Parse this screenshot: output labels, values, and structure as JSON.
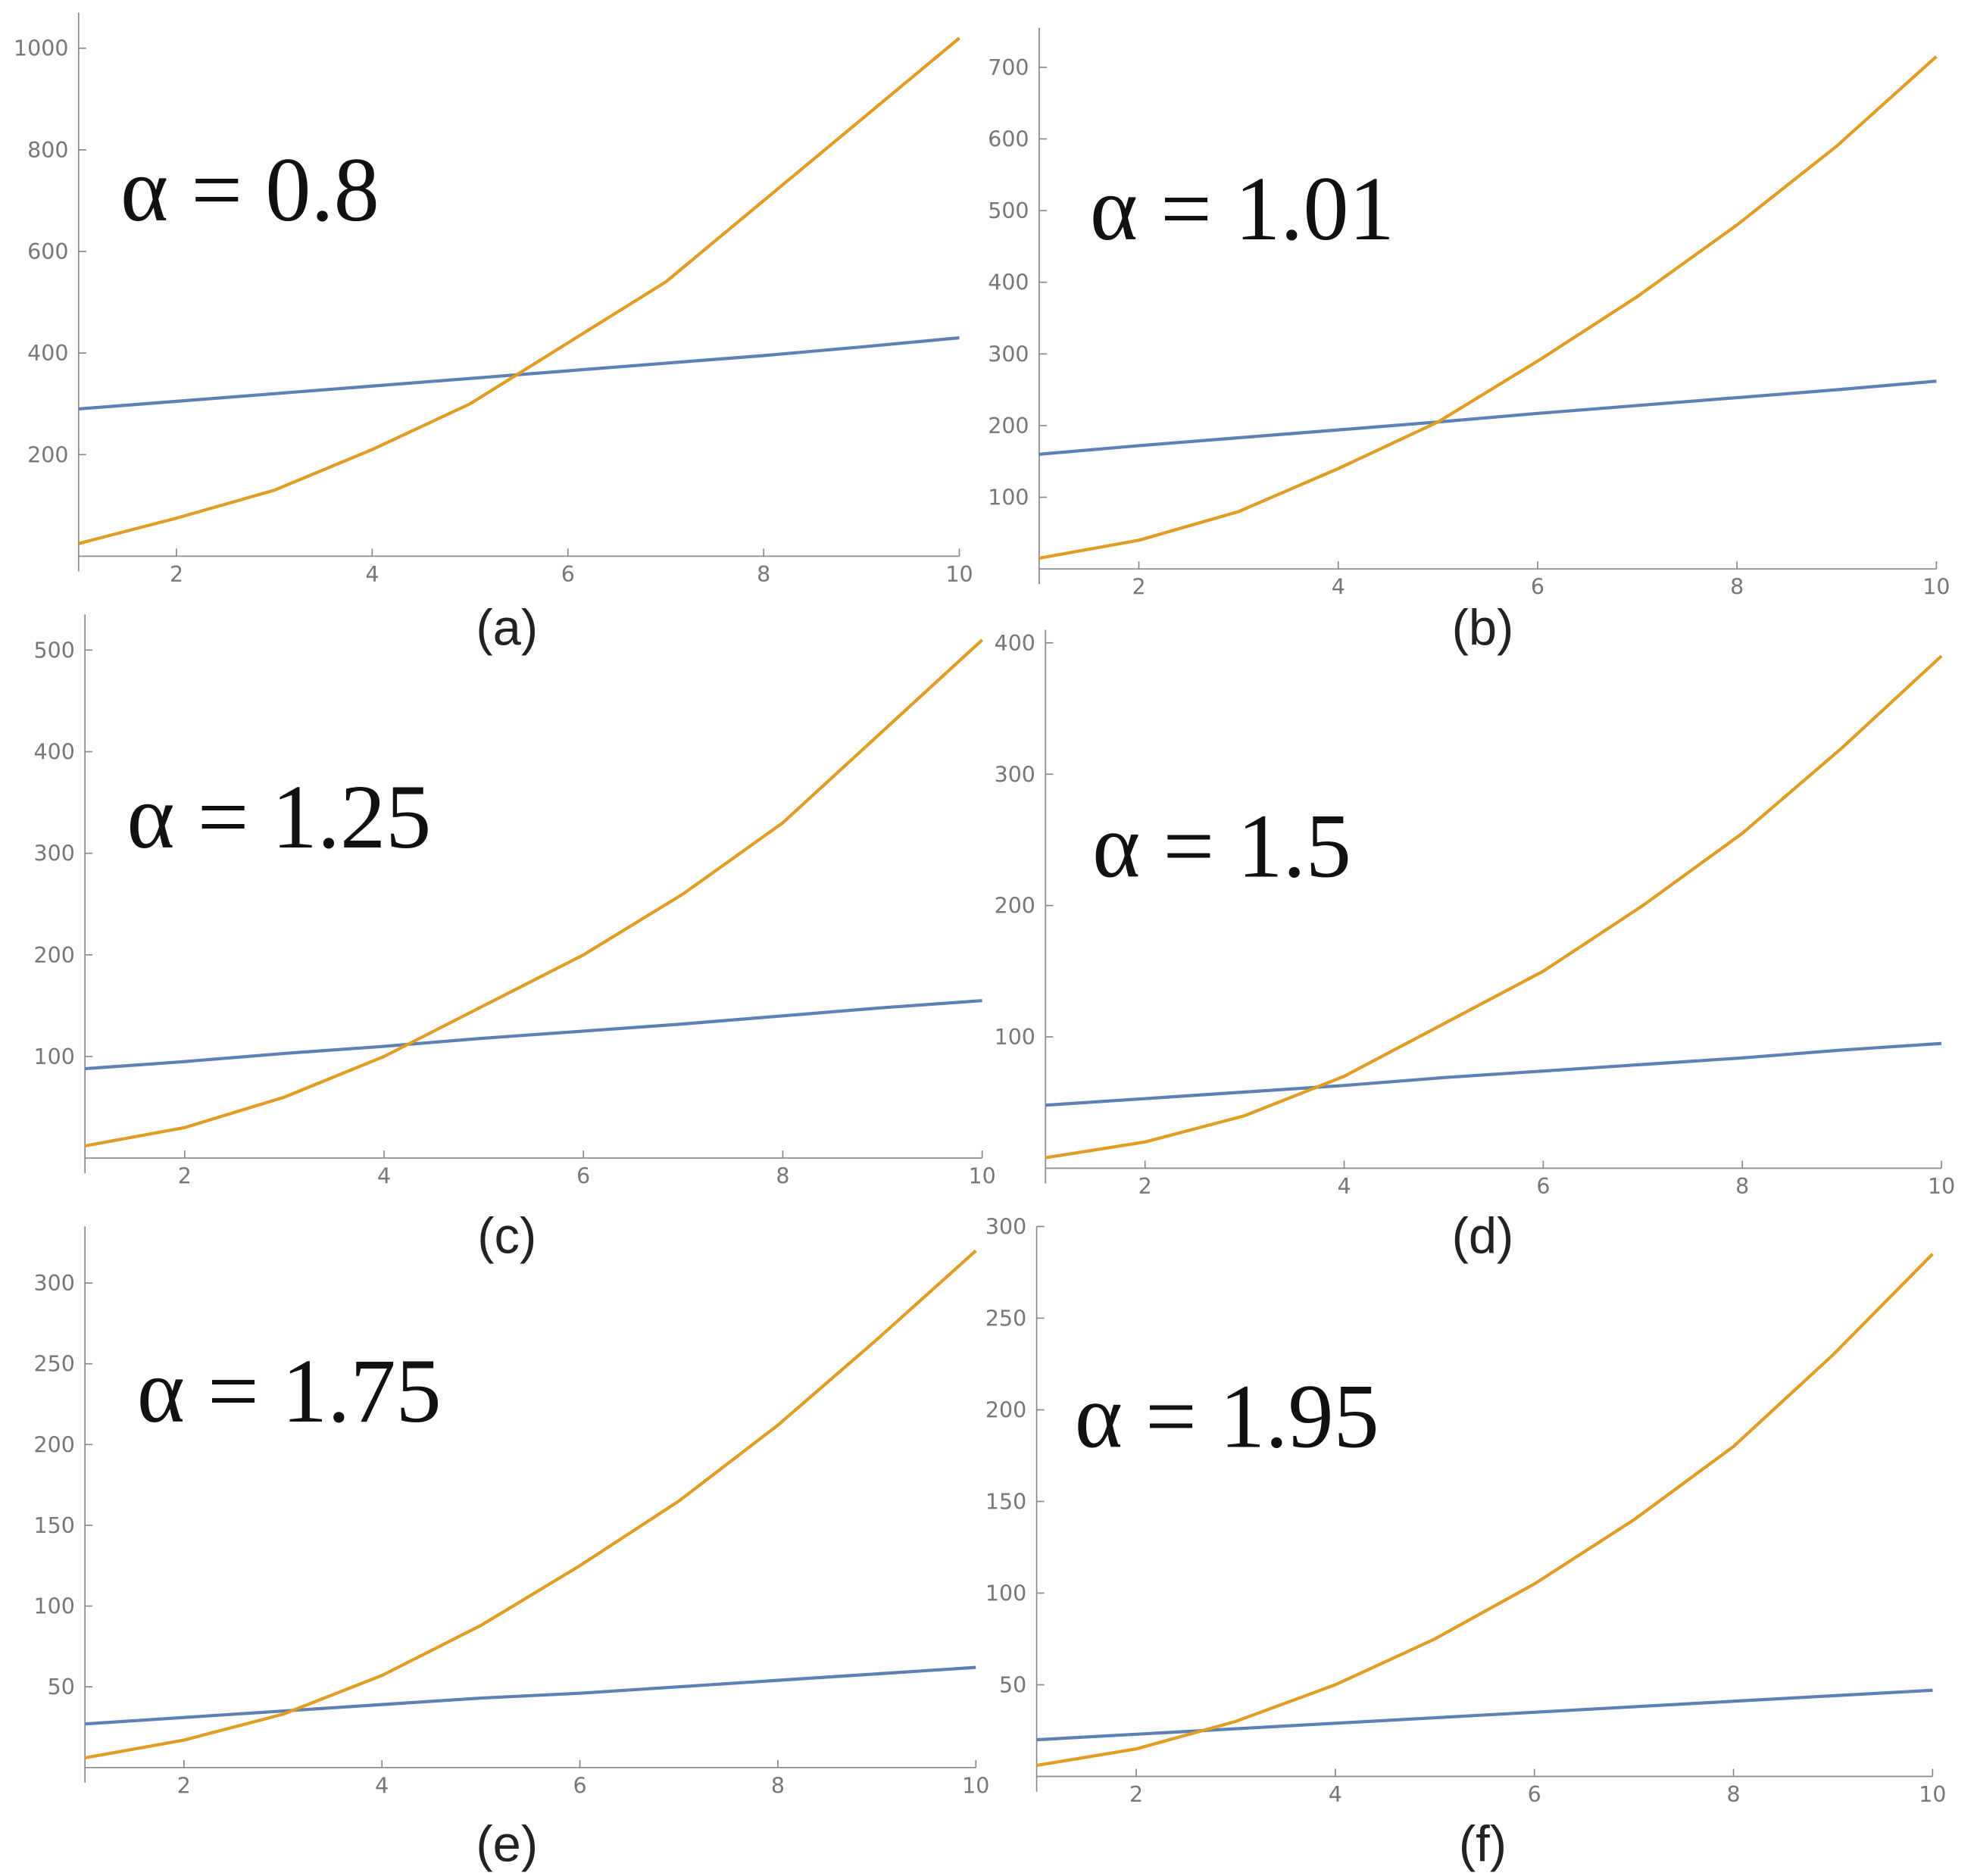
{
  "chart_data": [
    {
      "type": "line",
      "annotation": "α = 0.8",
      "caption": "(a)",
      "x": [
        1,
        2,
        3,
        4,
        5,
        6,
        7,
        8,
        9,
        10
      ],
      "series": [
        {
          "color": "#5e81b5",
          "values": [
            290,
            305,
            320,
            335,
            350,
            365,
            380,
            395,
            412,
            430
          ]
        },
        {
          "color": "#e19c24",
          "values": [
            25,
            75,
            130,
            210,
            300,
            420,
            540,
            700,
            860,
            1020
          ]
        }
      ],
      "xlim": [
        1,
        10
      ],
      "ylim": [
        0,
        1070
      ],
      "xticks": [
        2,
        4,
        6,
        8,
        10
      ],
      "yticks": [
        200,
        400,
        600,
        800,
        1000
      ]
    },
    {
      "type": "line",
      "annotation": "α = 1.01",
      "caption": "(b)",
      "x": [
        1,
        2,
        3,
        4,
        5,
        6,
        7,
        8,
        9,
        10
      ],
      "series": [
        {
          "color": "#5e81b5",
          "values": [
            160,
            172,
            183,
            194,
            205,
            217,
            228,
            239,
            250,
            262
          ]
        },
        {
          "color": "#e19c24",
          "values": [
            15,
            40,
            80,
            140,
            205,
            290,
            380,
            480,
            590,
            715
          ]
        }
      ],
      "xlim": [
        1,
        10
      ],
      "ylim": [
        0,
        755
      ],
      "xticks": [
        2,
        4,
        6,
        8,
        10
      ],
      "yticks": [
        100,
        200,
        300,
        400,
        500,
        600,
        700
      ]
    },
    {
      "type": "line",
      "annotation": "α = 1.25",
      "caption": "(c)",
      "x": [
        1,
        2,
        3,
        4,
        5,
        6,
        7,
        8,
        9,
        10
      ],
      "series": [
        {
          "color": "#5e81b5",
          "values": [
            88,
            95,
            103,
            110,
            118,
            125,
            132,
            140,
            148,
            155
          ]
        },
        {
          "color": "#e19c24",
          "values": [
            12,
            30,
            60,
            100,
            150,
            200,
            260,
            330,
            420,
            510
          ]
        }
      ],
      "xlim": [
        1,
        10
      ],
      "ylim": [
        0,
        535
      ],
      "xticks": [
        2,
        4,
        6,
        8,
        10
      ],
      "yticks": [
        100,
        200,
        300,
        400,
        500
      ]
    },
    {
      "type": "line",
      "annotation": "α = 1.5",
      "caption": "(d)",
      "x": [
        1,
        2,
        3,
        4,
        5,
        6,
        7,
        8,
        9,
        10
      ],
      "series": [
        {
          "color": "#5e81b5",
          "values": [
            48,
            53,
            58,
            63,
            69,
            74,
            79,
            84,
            90,
            95
          ]
        },
        {
          "color": "#e19c24",
          "values": [
            8,
            20,
            40,
            70,
            110,
            150,
            200,
            255,
            320,
            390
          ]
        }
      ],
      "xlim": [
        1,
        10
      ],
      "ylim": [
        0,
        410
      ],
      "xticks": [
        2,
        4,
        6,
        8,
        10
      ],
      "yticks": [
        100,
        200,
        300,
        400
      ]
    },
    {
      "type": "line",
      "annotation": "α = 1.75",
      "caption": "(e)",
      "x": [
        1,
        2,
        3,
        4,
        5,
        6,
        7,
        8,
        9,
        10
      ],
      "series": [
        {
          "color": "#5e81b5",
          "values": [
            27,
            31,
            35,
            39,
            43,
            46,
            50,
            54,
            58,
            62
          ]
        },
        {
          "color": "#e19c24",
          "values": [
            6,
            17,
            33,
            57,
            88,
            125,
            165,
            212,
            265,
            320
          ]
        }
      ],
      "xlim": [
        1,
        10
      ],
      "ylim": [
        0,
        335
      ],
      "xticks": [
        2,
        4,
        6,
        8,
        10
      ],
      "yticks": [
        50,
        100,
        150,
        200,
        250,
        300
      ]
    },
    {
      "type": "line",
      "annotation": "α = 1.95",
      "caption": "(f)",
      "x": [
        1,
        2,
        3,
        4,
        5,
        6,
        7,
        8,
        9,
        10
      ],
      "series": [
        {
          "color": "#5e81b5",
          "values": [
            20,
            23,
            26,
            29,
            32,
            35,
            38,
            41,
            44,
            47
          ]
        },
        {
          "color": "#e19c24",
          "values": [
            6,
            15,
            30,
            50,
            75,
            105,
            140,
            180,
            230,
            285
          ]
        }
      ],
      "xlim": [
        1,
        10
      ],
      "ylim": [
        0,
        300
      ],
      "xticks": [
        2,
        4,
        6,
        8,
        10
      ],
      "yticks": [
        50,
        100,
        150,
        200,
        250,
        300
      ]
    }
  ]
}
